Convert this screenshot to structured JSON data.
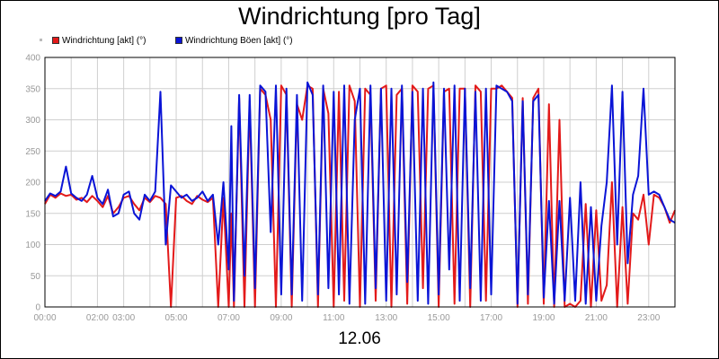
{
  "title": "Windrichtung [pro Tag]",
  "date_label": "12.06",
  "legend": [
    {
      "label": "Windrichtung [akt] (°)",
      "color": "#e31a1a"
    },
    {
      "label": "Windrichtung Böen [akt] (°)",
      "color": "#0a14d6"
    }
  ],
  "chart_data": {
    "type": "line",
    "title": "Windrichtung [pro Tag]",
    "xlabel": "12.06",
    "ylabel": "",
    "ylim": [
      0,
      400
    ],
    "xlim": [
      0,
      24
    ],
    "grid": true,
    "legend_position": "top-left",
    "yticks": [
      0,
      50,
      100,
      150,
      200,
      250,
      300,
      350,
      400
    ],
    "xticks": [
      {
        "t": 0,
        "label": "00:00"
      },
      {
        "t": 2,
        "label": "02:00"
      },
      {
        "t": 3,
        "label": "03:00"
      },
      {
        "t": 5,
        "label": "05:00"
      },
      {
        "t": 7,
        "label": "07:00"
      },
      {
        "t": 9,
        "label": "09:00"
      },
      {
        "t": 11,
        "label": "11:00"
      },
      {
        "t": 13,
        "label": "13:00"
      },
      {
        "t": 15,
        "label": "15:00"
      },
      {
        "t": 17,
        "label": "17:00"
      },
      {
        "t": 19,
        "label": "19:00"
      },
      {
        "t": 21,
        "label": "21:00"
      },
      {
        "t": 23,
        "label": "23:00"
      }
    ],
    "series": [
      {
        "name": "Windrichtung [akt] (°)",
        "color": "#e31a1a",
        "points": [
          [
            0.0,
            165
          ],
          [
            0.2,
            180
          ],
          [
            0.4,
            175
          ],
          [
            0.6,
            182
          ],
          [
            0.8,
            178
          ],
          [
            1.0,
            180
          ],
          [
            1.2,
            172
          ],
          [
            1.4,
            175
          ],
          [
            1.6,
            168
          ],
          [
            1.8,
            178
          ],
          [
            2.0,
            170
          ],
          [
            2.2,
            160
          ],
          [
            2.4,
            178
          ],
          [
            2.6,
            150
          ],
          [
            2.8,
            160
          ],
          [
            3.0,
            175
          ],
          [
            3.2,
            178
          ],
          [
            3.4,
            165
          ],
          [
            3.6,
            155
          ],
          [
            3.8,
            175
          ],
          [
            4.0,
            168
          ],
          [
            4.2,
            178
          ],
          [
            4.4,
            175
          ],
          [
            4.6,
            165
          ],
          [
            4.8,
            0
          ],
          [
            5.0,
            175
          ],
          [
            5.2,
            178
          ],
          [
            5.4,
            170
          ],
          [
            5.6,
            165
          ],
          [
            5.8,
            178
          ],
          [
            6.0,
            172
          ],
          [
            6.2,
            168
          ],
          [
            6.4,
            175
          ],
          [
            6.6,
            0
          ],
          [
            6.8,
            175
          ],
          [
            7.0,
            0
          ],
          [
            7.1,
            150
          ],
          [
            7.2,
            0
          ],
          [
            7.4,
            335
          ],
          [
            7.6,
            0
          ],
          [
            7.8,
            330
          ],
          [
            8.0,
            0
          ],
          [
            8.2,
            350
          ],
          [
            8.4,
            340
          ],
          [
            8.6,
            300
          ],
          [
            8.8,
            0
          ],
          [
            9.0,
            355
          ],
          [
            9.2,
            340
          ],
          [
            9.4,
            0
          ],
          [
            9.6,
            325
          ],
          [
            9.8,
            300
          ],
          [
            10.0,
            355
          ],
          [
            10.2,
            350
          ],
          [
            10.4,
            0
          ],
          [
            10.6,
            350
          ],
          [
            10.8,
            310
          ],
          [
            11.0,
            0
          ],
          [
            11.2,
            345
          ],
          [
            11.4,
            10
          ],
          [
            11.6,
            355
          ],
          [
            11.8,
            330
          ],
          [
            12.0,
            0
          ],
          [
            12.2,
            350
          ],
          [
            12.4,
            340
          ],
          [
            12.6,
            10
          ],
          [
            12.8,
            350
          ],
          [
            13.0,
            355
          ],
          [
            13.2,
            0
          ],
          [
            13.4,
            340
          ],
          [
            13.6,
            350
          ],
          [
            13.8,
            5
          ],
          [
            14.0,
            355
          ],
          [
            14.2,
            345
          ],
          [
            14.4,
            30
          ],
          [
            14.6,
            350
          ],
          [
            14.8,
            355
          ],
          [
            15.0,
            0
          ],
          [
            15.2,
            345
          ],
          [
            15.4,
            350
          ],
          [
            15.6,
            5
          ],
          [
            15.8,
            350
          ],
          [
            16.0,
            350
          ],
          [
            16.2,
            0
          ],
          [
            16.4,
            355
          ],
          [
            16.6,
            345
          ],
          [
            16.8,
            10
          ],
          [
            17.0,
            350
          ],
          [
            17.2,
            350
          ],
          [
            17.4,
            355
          ],
          [
            17.6,
            345
          ],
          [
            17.8,
            335
          ],
          [
            18.0,
            0
          ],
          [
            18.2,
            335
          ],
          [
            18.4,
            5
          ],
          [
            18.6,
            335
          ],
          [
            18.8,
            350
          ],
          [
            19.0,
            5
          ],
          [
            19.2,
            325
          ],
          [
            19.4,
            0
          ],
          [
            19.6,
            300
          ],
          [
            19.8,
            0
          ],
          [
            20.0,
            5
          ],
          [
            20.2,
            0
          ],
          [
            20.4,
            10
          ],
          [
            20.6,
            165
          ],
          [
            20.8,
            0
          ],
          [
            21.0,
            155
          ],
          [
            21.2,
            10
          ],
          [
            21.4,
            35
          ],
          [
            21.6,
            200
          ],
          [
            21.8,
            0
          ],
          [
            22.0,
            160
          ],
          [
            22.2,
            5
          ],
          [
            22.4,
            150
          ],
          [
            22.6,
            140
          ],
          [
            22.8,
            180
          ],
          [
            23.0,
            100
          ],
          [
            23.2,
            180
          ],
          [
            23.4,
            175
          ],
          [
            23.6,
            160
          ],
          [
            23.8,
            135
          ],
          [
            24.0,
            155
          ]
        ]
      },
      {
        "name": "Windrichtung Böen [akt] (°)",
        "color": "#0a14d6",
        "points": [
          [
            0.0,
            170
          ],
          [
            0.2,
            182
          ],
          [
            0.4,
            178
          ],
          [
            0.6,
            185
          ],
          [
            0.8,
            225
          ],
          [
            1.0,
            182
          ],
          [
            1.2,
            175
          ],
          [
            1.4,
            170
          ],
          [
            1.6,
            180
          ],
          [
            1.8,
            210
          ],
          [
            2.0,
            175
          ],
          [
            2.2,
            165
          ],
          [
            2.4,
            188
          ],
          [
            2.6,
            145
          ],
          [
            2.8,
            150
          ],
          [
            3.0,
            180
          ],
          [
            3.2,
            185
          ],
          [
            3.4,
            150
          ],
          [
            3.6,
            140
          ],
          [
            3.8,
            180
          ],
          [
            4.0,
            170
          ],
          [
            4.2,
            185
          ],
          [
            4.4,
            345
          ],
          [
            4.6,
            100
          ],
          [
            4.8,
            195
          ],
          [
            5.0,
            185
          ],
          [
            5.2,
            175
          ],
          [
            5.4,
            180
          ],
          [
            5.6,
            170
          ],
          [
            5.8,
            175
          ],
          [
            6.0,
            185
          ],
          [
            6.2,
            170
          ],
          [
            6.4,
            180
          ],
          [
            6.6,
            100
          ],
          [
            6.8,
            200
          ],
          [
            7.0,
            60
          ],
          [
            7.1,
            290
          ],
          [
            7.2,
            10
          ],
          [
            7.4,
            340
          ],
          [
            7.6,
            50
          ],
          [
            7.8,
            340
          ],
          [
            8.0,
            30
          ],
          [
            8.2,
            355
          ],
          [
            8.4,
            345
          ],
          [
            8.6,
            120
          ],
          [
            8.8,
            355
          ],
          [
            9.0,
            20
          ],
          [
            9.2,
            350
          ],
          [
            9.4,
            20
          ],
          [
            9.6,
            340
          ],
          [
            9.8,
            10
          ],
          [
            10.0,
            360
          ],
          [
            10.2,
            340
          ],
          [
            10.4,
            20
          ],
          [
            10.6,
            355
          ],
          [
            10.8,
            30
          ],
          [
            11.0,
            345
          ],
          [
            11.2,
            20
          ],
          [
            11.4,
            355
          ],
          [
            11.6,
            5
          ],
          [
            11.8,
            300
          ],
          [
            12.0,
            350
          ],
          [
            12.2,
            5
          ],
          [
            12.4,
            355
          ],
          [
            12.6,
            30
          ],
          [
            12.8,
            350
          ],
          [
            13.0,
            10
          ],
          [
            13.2,
            350
          ],
          [
            13.4,
            20
          ],
          [
            13.6,
            355
          ],
          [
            13.8,
            40
          ],
          [
            14.0,
            345
          ],
          [
            14.2,
            10
          ],
          [
            14.4,
            350
          ],
          [
            14.6,
            5
          ],
          [
            14.8,
            360
          ],
          [
            15.0,
            20
          ],
          [
            15.2,
            350
          ],
          [
            15.4,
            60
          ],
          [
            15.6,
            355
          ],
          [
            15.8,
            10
          ],
          [
            16.0,
            350
          ],
          [
            16.2,
            30
          ],
          [
            16.4,
            345
          ],
          [
            16.6,
            10
          ],
          [
            16.8,
            350
          ],
          [
            17.0,
            20
          ],
          [
            17.2,
            355
          ],
          [
            17.4,
            350
          ],
          [
            17.6,
            345
          ],
          [
            17.8,
            330
          ],
          [
            18.0,
            5
          ],
          [
            18.2,
            330
          ],
          [
            18.4,
            20
          ],
          [
            18.6,
            330
          ],
          [
            18.8,
            340
          ],
          [
            19.0,
            15
          ],
          [
            19.2,
            170
          ],
          [
            19.4,
            5
          ],
          [
            19.6,
            170
          ],
          [
            19.8,
            10
          ],
          [
            20.0,
            175
          ],
          [
            20.2,
            10
          ],
          [
            20.4,
            200
          ],
          [
            20.6,
            5
          ],
          [
            20.8,
            160
          ],
          [
            21.0,
            10
          ],
          [
            21.2,
            130
          ],
          [
            21.4,
            200
          ],
          [
            21.6,
            355
          ],
          [
            21.8,
            100
          ],
          [
            22.0,
            345
          ],
          [
            22.2,
            70
          ],
          [
            22.4,
            180
          ],
          [
            22.6,
            210
          ],
          [
            22.8,
            350
          ],
          [
            23.0,
            180
          ],
          [
            23.2,
            185
          ],
          [
            23.4,
            180
          ],
          [
            23.6,
            160
          ],
          [
            23.8,
            140
          ],
          [
            24.0,
            135
          ]
        ]
      }
    ]
  }
}
